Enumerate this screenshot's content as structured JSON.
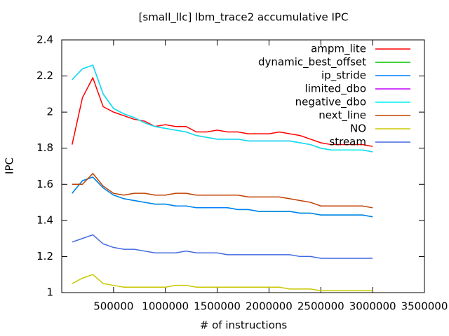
{
  "chart_data": {
    "type": "line",
    "title": "[small_llc] lbm_trace2 accumulative IPC",
    "xlabel": "# of instructions",
    "ylabel": "IPC",
    "xlim": [
      0,
      3500000
    ],
    "xticks": [
      500000,
      1000000,
      1500000,
      2000000,
      2500000,
      3000000,
      3500000
    ],
    "ylim": [
      1,
      2.4
    ],
    "yticks": [
      1,
      1.2,
      1.4,
      1.6,
      1.8,
      2,
      2.2,
      2.4
    ],
    "legend": "top-right",
    "x": [
      100000,
      200000,
      300000,
      400000,
      500000,
      600000,
      700000,
      800000,
      900000,
      1000000,
      1100000,
      1200000,
      1300000,
      1400000,
      1500000,
      1600000,
      1700000,
      1800000,
      1900000,
      2000000,
      2100000,
      2200000,
      2300000,
      2400000,
      2500000,
      2600000,
      2700000,
      2800000,
      2900000,
      3000000
    ],
    "series": [
      {
        "name": "ampm_lite",
        "color": "#ff0000",
        "values": [
          1.82,
          2.08,
          2.19,
          2.03,
          2.0,
          1.98,
          1.96,
          1.95,
          1.92,
          1.93,
          1.92,
          1.92,
          1.89,
          1.89,
          1.9,
          1.89,
          1.89,
          1.88,
          1.88,
          1.88,
          1.89,
          1.88,
          1.87,
          1.85,
          1.83,
          1.82,
          1.82,
          1.82,
          1.82,
          1.81
        ]
      },
      {
        "name": "dynamic_best_offset",
        "color": "#00c000",
        "values": [
          1.55,
          1.62,
          1.64,
          1.58,
          1.54,
          1.52,
          1.51,
          1.5,
          1.49,
          1.49,
          1.48,
          1.48,
          1.47,
          1.47,
          1.47,
          1.47,
          1.46,
          1.46,
          1.45,
          1.45,
          1.45,
          1.45,
          1.44,
          1.44,
          1.43,
          1.43,
          1.43,
          1.43,
          1.43,
          1.42
        ]
      },
      {
        "name": "ip_stride",
        "color": "#0080ff",
        "values": [
          1.55,
          1.62,
          1.64,
          1.58,
          1.54,
          1.52,
          1.51,
          1.5,
          1.49,
          1.49,
          1.48,
          1.48,
          1.47,
          1.47,
          1.47,
          1.47,
          1.46,
          1.46,
          1.45,
          1.45,
          1.45,
          1.45,
          1.44,
          1.44,
          1.43,
          1.43,
          1.43,
          1.43,
          1.43,
          1.42
        ]
      },
      {
        "name": "limited_dbo",
        "color": "#c000ff",
        "values": [
          2.18,
          2.24,
          2.26,
          2.1,
          2.02,
          1.99,
          1.97,
          1.94,
          1.92,
          1.91,
          1.9,
          1.89,
          1.87,
          1.86,
          1.85,
          1.85,
          1.85,
          1.84,
          1.84,
          1.84,
          1.84,
          1.84,
          1.83,
          1.82,
          1.8,
          1.79,
          1.79,
          1.79,
          1.79,
          1.78
        ]
      },
      {
        "name": "negative_dbo",
        "color": "#00eeee",
        "values": [
          2.18,
          2.24,
          2.26,
          2.1,
          2.02,
          1.99,
          1.97,
          1.94,
          1.92,
          1.91,
          1.9,
          1.89,
          1.87,
          1.86,
          1.85,
          1.85,
          1.85,
          1.84,
          1.84,
          1.84,
          1.84,
          1.84,
          1.83,
          1.82,
          1.8,
          1.79,
          1.79,
          1.79,
          1.79,
          1.78
        ]
      },
      {
        "name": "next_line",
        "color": "#c04000",
        "values": [
          1.6,
          1.6,
          1.66,
          1.59,
          1.55,
          1.54,
          1.55,
          1.55,
          1.54,
          1.54,
          1.55,
          1.55,
          1.54,
          1.54,
          1.54,
          1.54,
          1.54,
          1.53,
          1.53,
          1.53,
          1.53,
          1.52,
          1.51,
          1.5,
          1.48,
          1.48,
          1.48,
          1.48,
          1.48,
          1.47
        ]
      },
      {
        "name": "NO",
        "color": "#c8c800",
        "values": [
          1.05,
          1.08,
          1.1,
          1.05,
          1.04,
          1.03,
          1.03,
          1.03,
          1.03,
          1.03,
          1.04,
          1.04,
          1.03,
          1.03,
          1.03,
          1.03,
          1.03,
          1.03,
          1.03,
          1.03,
          1.03,
          1.02,
          1.02,
          1.02,
          1.01,
          1.01,
          1.01,
          1.01,
          1.01,
          1.01
        ]
      },
      {
        "name": "stream",
        "color": "#4169e1",
        "values": [
          1.28,
          1.3,
          1.32,
          1.27,
          1.25,
          1.24,
          1.24,
          1.23,
          1.22,
          1.22,
          1.22,
          1.23,
          1.22,
          1.22,
          1.22,
          1.21,
          1.21,
          1.21,
          1.21,
          1.21,
          1.21,
          1.21,
          1.2,
          1.2,
          1.19,
          1.19,
          1.19,
          1.19,
          1.19,
          1.19
        ]
      }
    ]
  }
}
